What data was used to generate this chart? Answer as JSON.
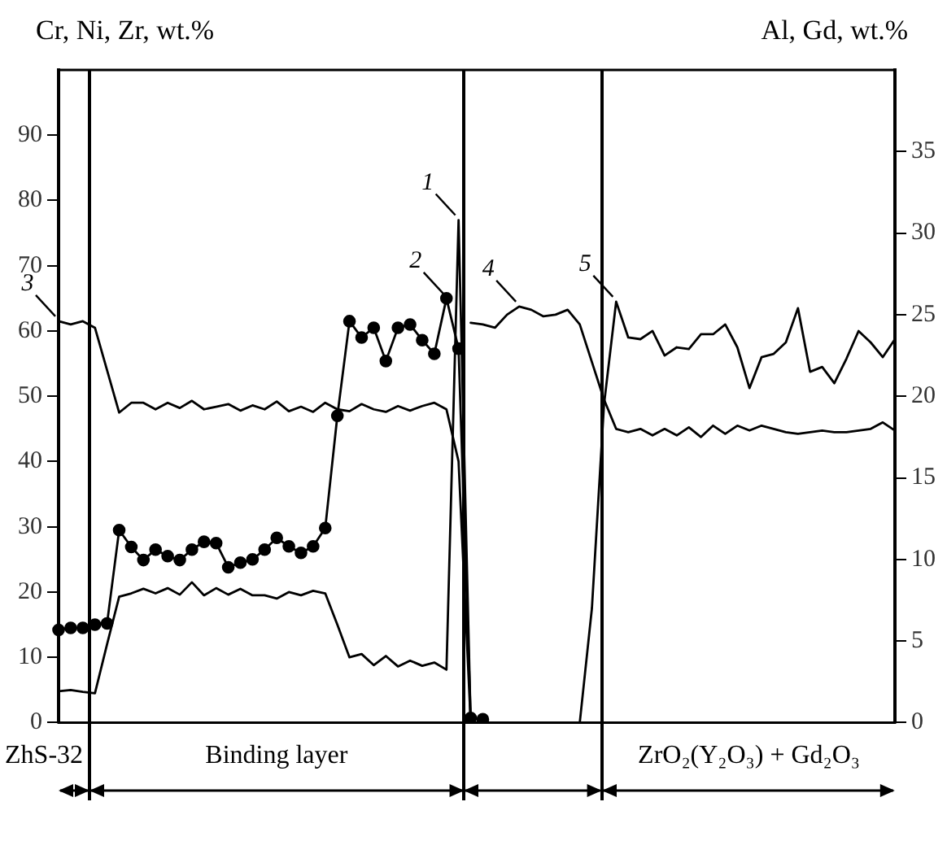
{
  "chart_data": {
    "type": "line",
    "ylabel": "Cr, Ni, Zr, wt.%",
    "y2label": "Al, Gd, wt.%",
    "categories": [
      null,
      null,
      null,
      null,
      null,
      null,
      null,
      null,
      null,
      null,
      null,
      null,
      null,
      null,
      null,
      null,
      null,
      null,
      null,
      null,
      null,
      null,
      null,
      null,
      null,
      null,
      null,
      null,
      null,
      null,
      null,
      null,
      null,
      null,
      null,
      null,
      null,
      null,
      null,
      null,
      null,
      null,
      null,
      null,
      null,
      null,
      null,
      null,
      null,
      null,
      null,
      null,
      null,
      null,
      null,
      null,
      null,
      null,
      null,
      null,
      null,
      null,
      null,
      null,
      null,
      null,
      null,
      null,
      null,
      null
    ],
    "ylim": [
      0,
      100
    ],
    "yticks": [
      0,
      10,
      20,
      30,
      40,
      50,
      60,
      70,
      80,
      90
    ],
    "y2lim": [
      0,
      40
    ],
    "y2ticks": [
      0,
      5,
      10,
      15,
      20,
      25,
      30,
      35
    ],
    "grid": false,
    "legend": false,
    "series": [
      {
        "name": "1",
        "color": "#000000",
        "values": [
          4.8,
          5,
          4.7,
          4.5,
          12,
          19.3,
          19.8,
          20.5,
          19.8,
          20.6,
          19.6,
          21.5,
          19.5,
          20.6,
          19.6,
          20.5,
          19.5,
          19.5,
          19,
          20,
          19.5,
          20.2,
          19.8,
          15,
          10,
          10.5,
          8.8,
          10.2,
          8.6,
          9.5,
          8.7,
          9.2,
          8.1,
          77,
          0,
          null,
          null,
          null,
          null,
          null,
          null,
          null,
          null,
          null,
          null,
          null,
          null,
          null,
          null,
          null,
          null,
          null,
          null,
          null,
          null,
          null,
          null,
          null,
          null,
          null,
          null,
          null,
          null,
          null,
          null,
          null,
          null,
          null,
          null,
          null
        ]
      },
      {
        "name": "2",
        "color": "#000000",
        "marker": "circle",
        "values": [
          14.2,
          14.5,
          14.5,
          15,
          15.2,
          29.5,
          26.9,
          24.9,
          26.5,
          25.5,
          24.9,
          26.5,
          27.7,
          27.5,
          23.8,
          24.5,
          25,
          26.5,
          28.3,
          27,
          26,
          27,
          29.8,
          47,
          61.5,
          59,
          60.5,
          55.4,
          60.5,
          61,
          58.6,
          56.5,
          65,
          57.3,
          0.7,
          0.5,
          null,
          null,
          null,
          null,
          null,
          null,
          null,
          null,
          null,
          null,
          null,
          null,
          null,
          null,
          null,
          null,
          null,
          null,
          null,
          null,
          null,
          null,
          null,
          null,
          null,
          null,
          null,
          null,
          null,
          null,
          null,
          null,
          null,
          null
        ]
      },
      {
        "name": "3",
        "color": "#000000",
        "values": [
          61.5,
          61,
          61.5,
          60.5,
          54,
          47.5,
          49,
          49,
          48,
          49,
          48.2,
          49.3,
          48,
          48.4,
          48.8,
          47.8,
          48.6,
          48,
          49.2,
          47.7,
          48.4,
          47.6,
          49,
          48,
          47.7,
          48.8,
          48,
          47.6,
          48.5,
          47.8,
          48.5,
          49,
          48,
          40,
          0,
          null,
          null,
          null,
          null,
          null,
          null,
          null,
          null,
          null,
          null,
          null,
          null,
          null,
          null,
          null,
          null,
          null,
          null,
          null,
          null,
          null,
          null,
          null,
          null,
          null,
          null,
          null,
          null,
          null,
          null,
          null,
          null,
          null,
          null,
          null
        ]
      },
      {
        "name": "4",
        "color": "#000000",
        "axis": "y2",
        "values": [
          null,
          null,
          null,
          null,
          null,
          null,
          null,
          null,
          null,
          null,
          null,
          null,
          null,
          null,
          null,
          null,
          null,
          null,
          null,
          null,
          null,
          null,
          null,
          null,
          null,
          null,
          null,
          null,
          null,
          null,
          null,
          null,
          null,
          null,
          24.5,
          24.4,
          24.2,
          25,
          25.5,
          25.3,
          24.9,
          25,
          25.3,
          24.4,
          22.1,
          19.8,
          18,
          17.8,
          18,
          17.6,
          18,
          17.6,
          18.1,
          17.5,
          18.2,
          17.7,
          18.2,
          17.9,
          18.2,
          18,
          17.8,
          17.7,
          17.8,
          17.9,
          17.8,
          17.8,
          17.9,
          18,
          18.4,
          17.9
        ]
      },
      {
        "name": "5",
        "color": "#000000",
        "axis": "y2",
        "values": [
          null,
          null,
          null,
          null,
          null,
          null,
          null,
          null,
          null,
          null,
          null,
          null,
          null,
          null,
          null,
          null,
          null,
          null,
          null,
          null,
          null,
          null,
          null,
          null,
          null,
          null,
          null,
          null,
          null,
          null,
          null,
          null,
          null,
          null,
          null,
          null,
          null,
          null,
          null,
          null,
          null,
          null,
          null,
          0,
          7,
          19.5,
          25.8,
          23.6,
          23.5,
          24,
          22.5,
          23,
          22.9,
          23.8,
          23.8,
          24.4,
          23,
          20.5,
          22.4,
          22.6,
          23.3,
          25.4,
          21.5,
          21.8,
          20.8,
          22.3,
          24,
          23.3,
          22.4,
          23.5
        ]
      }
    ],
    "annotations": [
      "ZhS-32",
      "Binding layer",
      "ZrO₂(Y₂O₃) + Gd₂O₃"
    ]
  }
}
